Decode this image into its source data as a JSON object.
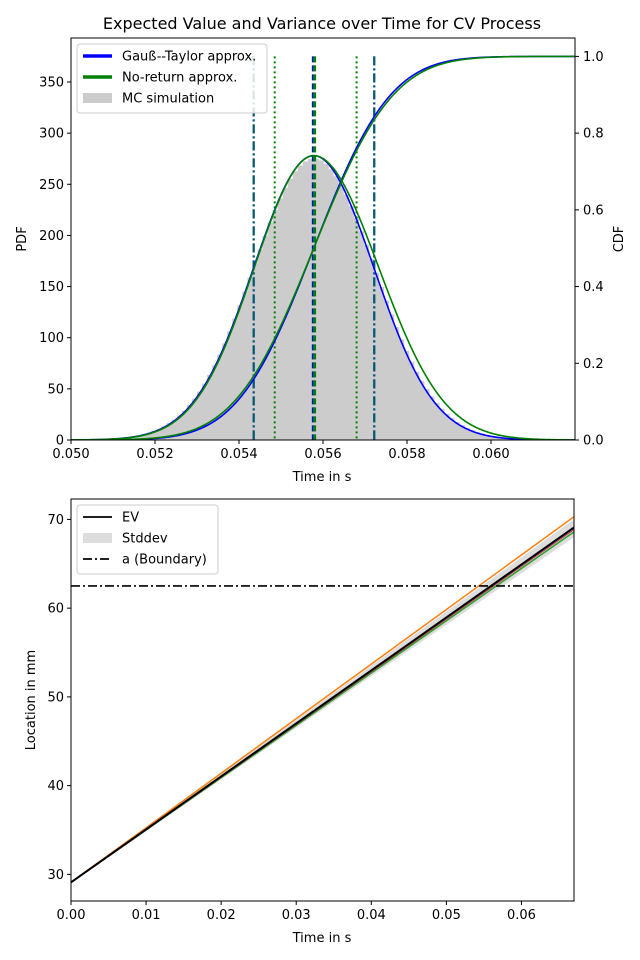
{
  "chart_data": [
    {
      "type": "line",
      "title": "Expected Value and Variance over Time for CV Process",
      "xlabel": "Time in s",
      "ylabel": "PDF",
      "y2label": "CDF",
      "xlim": [
        0.05,
        0.062
      ],
      "ylim": [
        0,
        393
      ],
      "y2lim": [
        0,
        1.048
      ],
      "x_ticks": [
        0.05,
        0.052,
        0.054,
        0.056,
        0.058,
        0.06
      ],
      "x_tick_labels": [
        "0.050",
        "0.052",
        "0.054",
        "0.056",
        "0.058",
        "0.060"
      ],
      "y_ticks": [
        0,
        50,
        100,
        150,
        200,
        250,
        300,
        350
      ],
      "y2_ticks": [
        0.0,
        0.2,
        0.4,
        0.6,
        0.8,
        1.0
      ],
      "y2_tick_labels": [
        "0.0",
        "0.2",
        "0.4",
        "0.6",
        "0.8",
        "1.0"
      ],
      "legend": {
        "position": "upper-left",
        "entries": [
          {
            "label": "Gauß--Taylor approx.",
            "color": "#0000ff",
            "kind": "line"
          },
          {
            "label": "No-return approx.",
            "color": "#008000",
            "kind": "line"
          },
          {
            "label": "MC simulation",
            "color": "#cccccc",
            "kind": "patch"
          }
        ]
      },
      "series": [
        {
          "name": "Gauß--Taylor approx.",
          "color": "#0000ff",
          "pdf": {
            "mean": 0.05578,
            "sd": 0.00143,
            "peak": 278
          },
          "cdf": {
            "mean": 0.05578,
            "sd": 0.00143
          }
        },
        {
          "name": "No-return approx.",
          "color": "#008000",
          "pdf": {
            "mean": 0.05578,
            "sd": 0.00146,
            "peak": 278,
            "skew": 0.00012
          },
          "cdf": {
            "mean": 0.05578,
            "sd": 0.00148
          }
        },
        {
          "name": "MC simulation",
          "color": "#cccccc",
          "histogram": {
            "mean": 0.05578,
            "sd": 0.00145,
            "peak": 275,
            "bin_width": 0.00012
          }
        }
      ],
      "vertical_lines": [
        {
          "x": 0.05435,
          "style": "dashdot",
          "color": "#0000ff"
        },
        {
          "x": 0.05435,
          "style": "dashdot",
          "color": "#006060"
        },
        {
          "x": 0.05485,
          "style": "dotted",
          "color": "#008000"
        },
        {
          "x": 0.05577,
          "style": "dashed",
          "color": "#0000ff"
        },
        {
          "x": 0.0558,
          "style": "dashed",
          "color": "#008000"
        },
        {
          "x": 0.0568,
          "style": "dotted",
          "color": "#008000"
        },
        {
          "x": 0.05722,
          "style": "dashdot",
          "color": "#0000ff"
        },
        {
          "x": 0.05722,
          "style": "dashdot",
          "color": "#006060"
        }
      ]
    },
    {
      "type": "line",
      "title": "",
      "xlabel": "Time in s",
      "ylabel": "Location in mm",
      "xlim": [
        0.0,
        0.067
      ],
      "ylim": [
        27,
        72.3
      ],
      "x_ticks": [
        0.0,
        0.01,
        0.02,
        0.03,
        0.04,
        0.05,
        0.06
      ],
      "x_tick_labels": [
        "0.00",
        "0.01",
        "0.02",
        "0.03",
        "0.04",
        "0.05",
        "0.06"
      ],
      "y_ticks": [
        30,
        40,
        50,
        60,
        70
      ],
      "legend": {
        "position": "upper-left",
        "entries": [
          {
            "label": "EV",
            "color": "#000000",
            "kind": "line"
          },
          {
            "label": "Stddev",
            "color": "#dddddd",
            "kind": "patch"
          },
          {
            "label": "a (Boundary)",
            "color": "#000000",
            "kind": "dashdot"
          }
        ]
      },
      "series": [
        {
          "name": "EV",
          "color": "#000000",
          "x": [
            0.0,
            0.067
          ],
          "y": [
            29.1,
            69.1
          ]
        },
        {
          "name": "Stddev",
          "color": "#dddddd",
          "x": [
            0.0,
            0.067
          ],
          "upper": [
            29.1,
            70.0
          ],
          "lower": [
            29.1,
            68.0
          ]
        },
        {
          "name": "",
          "color": "#ff7f0e",
          "x": [
            0.0,
            0.067
          ],
          "y": [
            29.1,
            70.3
          ]
        },
        {
          "name": "",
          "color": "#2ca02c",
          "x": [
            0.0,
            0.067
          ],
          "y": [
            29.1,
            68.6
          ]
        },
        {
          "name": "",
          "color": "#d62728",
          "x": [
            0.0,
            0.067
          ],
          "y": [
            29.1,
            68.9
          ]
        },
        {
          "name": "",
          "color": "#9467bd",
          "x": [
            0.0,
            0.067
          ],
          "y": [
            29.1,
            69.0
          ]
        },
        {
          "name": "a (Boundary)",
          "color": "#000000",
          "style": "dashdot",
          "x": [
            0.0,
            0.067
          ],
          "y": [
            62.5,
            62.5
          ]
        }
      ]
    }
  ]
}
